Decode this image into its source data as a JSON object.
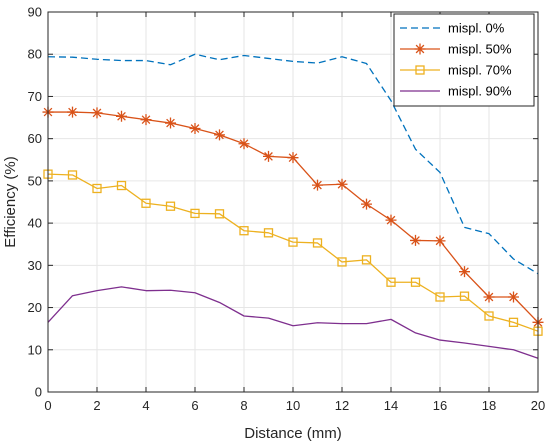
{
  "chart_data": {
    "type": "line",
    "xlabel": "Distance (mm)",
    "ylabel": "Efficiency (%)",
    "xlim": [
      0,
      20
    ],
    "ylim": [
      0,
      90
    ],
    "xticks": [
      0,
      2,
      4,
      6,
      8,
      10,
      12,
      14,
      16,
      18,
      20
    ],
    "yticks": [
      0,
      10,
      20,
      30,
      40,
      50,
      60,
      70,
      80,
      90
    ],
    "grid": true,
    "legend_position": "top-right",
    "x": [
      0,
      1,
      2,
      3,
      4,
      5,
      6,
      7,
      8,
      9,
      10,
      11,
      12,
      13,
      14,
      15,
      16,
      17,
      18,
      19,
      20
    ],
    "series": [
      {
        "name": "mispl. 0%",
        "color": "#0072BD",
        "line_style": "dashed",
        "marker": "none",
        "values": [
          79.4,
          79.3,
          78.8,
          78.5,
          78.5,
          77.5,
          80.0,
          78.7,
          79.7,
          79.0,
          78.3,
          77.9,
          79.4,
          77.8,
          69.0,
          57.5,
          52.0,
          39.0,
          37.5,
          31.5,
          28.0
        ]
      },
      {
        "name": "mispl. 50%",
        "color": "#D95319",
        "line_style": "solid",
        "marker": "asterisk",
        "values": [
          66.3,
          66.3,
          66.1,
          65.3,
          64.5,
          63.7,
          62.4,
          60.9,
          58.8,
          55.8,
          55.5,
          49.0,
          49.2,
          44.5,
          40.7,
          35.9,
          35.8,
          28.5,
          22.5,
          22.5,
          16.5
        ]
      },
      {
        "name": "mispl. 70%",
        "color": "#EDB120",
        "line_style": "solid",
        "marker": "square",
        "values": [
          51.6,
          51.4,
          48.2,
          48.9,
          44.7,
          44.0,
          42.3,
          42.2,
          38.2,
          37.7,
          35.5,
          35.3,
          30.8,
          31.3,
          26.0,
          26.0,
          22.5,
          22.7,
          18.0,
          16.5,
          14.4
        ]
      },
      {
        "name": "mispl. 90%",
        "color": "#7E2F8E",
        "line_style": "solid",
        "marker": "none",
        "values": [
          16.5,
          22.8,
          24.0,
          24.9,
          24.0,
          24.1,
          23.5,
          21.2,
          18.0,
          17.5,
          15.7,
          16.4,
          16.2,
          16.2,
          17.2,
          14.0,
          12.3,
          11.6,
          10.8,
          10.0,
          8.0
        ]
      }
    ]
  }
}
